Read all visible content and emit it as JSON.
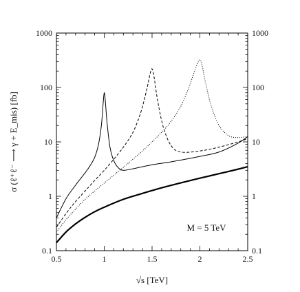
{
  "chart_data": {
    "type": "line",
    "title": "",
    "xlabel": "√s [TeV]",
    "ylabel": "σ (ℓ⁺ℓ⁻ ⟶ γ + E_mis) [fb]",
    "xlim": [
      0.5,
      2.5
    ],
    "ylim": [
      0.1,
      1000
    ],
    "yscale": "log",
    "grid": false,
    "legend": "none",
    "x_ticks": [
      "0.5",
      "1",
      "1.5",
      "2",
      "2.5"
    ],
    "y_ticks_left": [
      "0.1",
      "1",
      "10",
      "100",
      "1000"
    ],
    "y_ticks_right": [
      "0.1",
      "1",
      "10",
      "100",
      "1000"
    ],
    "annotation": "M = 5 TeV",
    "series": [
      {
        "style": "solid-thick",
        "x": [
          0.5,
          0.6,
          0.7,
          0.8,
          0.9,
          1.0,
          1.2,
          1.4,
          1.6,
          1.8,
          2.0,
          2.2,
          2.4,
          2.5
        ],
        "y": [
          0.14,
          0.22,
          0.31,
          0.41,
          0.52,
          0.63,
          0.88,
          1.13,
          1.43,
          1.76,
          2.15,
          2.6,
          3.15,
          3.5
        ]
      },
      {
        "style": "solid-thin",
        "x": [
          0.5,
          0.6,
          0.7,
          0.8,
          0.85,
          0.9,
          0.94,
          0.97,
          0.99,
          1.0,
          1.01,
          1.03,
          1.06,
          1.1,
          1.15,
          1.2,
          1.3,
          1.5,
          1.7,
          2.0,
          2.2,
          2.4,
          2.5
        ],
        "y": [
          0.4,
          0.9,
          1.6,
          2.7,
          3.6,
          5.2,
          9.0,
          20,
          55,
          80,
          60,
          22,
          8,
          4.5,
          3.3,
          3.0,
          3.2,
          3.8,
          4.3,
          5.4,
          6.5,
          9.5,
          12.5
        ]
      },
      {
        "style": "dashed",
        "x": [
          0.5,
          0.6,
          0.7,
          0.8,
          0.9,
          1.0,
          1.1,
          1.2,
          1.3,
          1.38,
          1.44,
          1.48,
          1.5,
          1.52,
          1.56,
          1.62,
          1.7,
          1.8,
          2.0,
          2.2,
          2.4,
          2.5
        ],
        "y": [
          0.27,
          0.48,
          0.8,
          1.25,
          1.95,
          3.0,
          4.8,
          8.0,
          15,
          34,
          85,
          180,
          220,
          160,
          55,
          18,
          8.5,
          6.5,
          6.8,
          8.0,
          10.0,
          11.5
        ]
      },
      {
        "style": "dotted",
        "x": [
          0.5,
          0.6,
          0.7,
          0.8,
          0.9,
          1.0,
          1.1,
          1.2,
          1.3,
          1.4,
          1.5,
          1.6,
          1.7,
          1.8,
          1.88,
          1.94,
          1.98,
          2.0,
          2.02,
          2.06,
          2.12,
          2.2,
          2.3,
          2.4,
          2.5
        ],
        "y": [
          0.22,
          0.37,
          0.58,
          0.88,
          1.25,
          1.75,
          2.45,
          3.4,
          4.8,
          6.8,
          10,
          15,
          24,
          45,
          95,
          190,
          290,
          320,
          270,
          120,
          45,
          20,
          13,
          12,
          12.5
        ]
      }
    ]
  }
}
